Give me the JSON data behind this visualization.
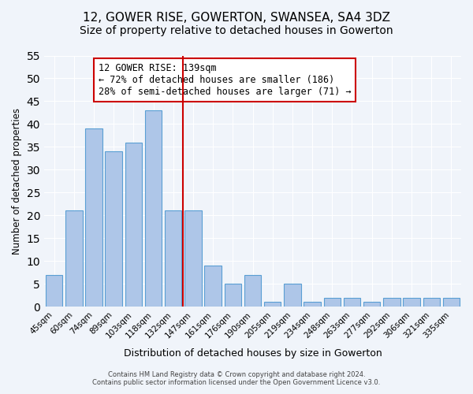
{
  "title": "12, GOWER RISE, GOWERTON, SWANSEA, SA4 3DZ",
  "subtitle": "Size of property relative to detached houses in Gowerton",
  "xlabel": "Distribution of detached houses by size in Gowerton",
  "ylabel": "Number of detached properties",
  "bar_labels": [
    "45sqm",
    "60sqm",
    "74sqm",
    "89sqm",
    "103sqm",
    "118sqm",
    "132sqm",
    "147sqm",
    "161sqm",
    "176sqm",
    "190sqm",
    "205sqm",
    "219sqm",
    "234sqm",
    "248sqm",
    "263sqm",
    "277sqm",
    "292sqm",
    "306sqm",
    "321sqm",
    "335sqm"
  ],
  "bar_values": [
    7,
    21,
    39,
    34,
    36,
    43,
    21,
    21,
    9,
    5,
    7,
    1,
    5,
    1,
    2,
    2,
    1,
    2,
    2,
    2,
    2
  ],
  "bar_color": "#aec6e8",
  "bar_edge_color": "#5a9fd4",
  "ylim": [
    0,
    55
  ],
  "yticks": [
    0,
    5,
    10,
    15,
    20,
    25,
    30,
    35,
    40,
    45,
    50,
    55
  ],
  "vline_x": 6,
  "vline_color": "#cc0000",
  "annotation_title": "12 GOWER RISE: 139sqm",
  "annotation_line1": "← 72% of detached houses are smaller (186)",
  "annotation_line2": "28% of semi-detached houses are larger (71) →",
  "annotation_box_color": "#ffffff",
  "annotation_box_edge": "#cc0000",
  "footer1": "Contains HM Land Registry data © Crown copyright and database right 2024.",
  "footer2": "Contains public sector information licensed under the Open Government Licence v3.0.",
  "background_color": "#f0f4fa",
  "plot_bg_color": "#f0f4fa",
  "title_fontsize": 11,
  "subtitle_fontsize": 10
}
